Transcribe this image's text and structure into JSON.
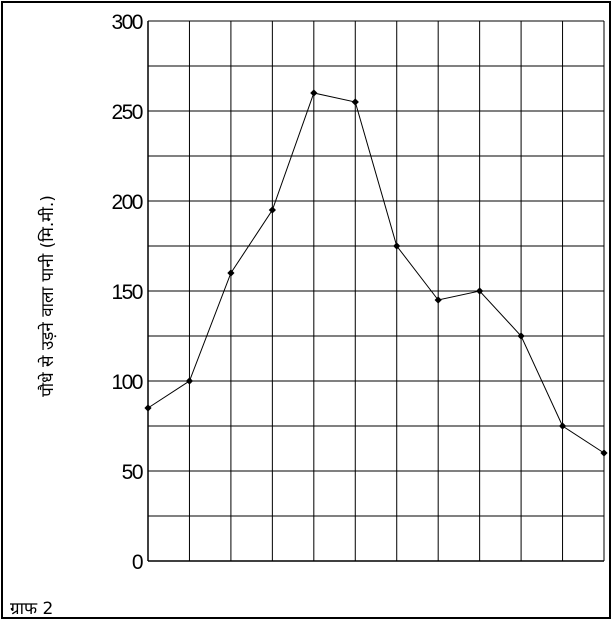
{
  "chart_data": {
    "type": "line",
    "title": "",
    "caption": "ग्राफ 2",
    "ylabel": "पौधे से उड़ने वाला पानी (मि.मी.)",
    "xlabel": "",
    "ylim": [
      0,
      300
    ],
    "yticks": [
      "0",
      "50",
      "100",
      "150",
      "200",
      "250",
      "300"
    ],
    "x": [
      0,
      1,
      2,
      3,
      4,
      5,
      6,
      7,
      8,
      9,
      10,
      11
    ],
    "xlim": [
      0,
      11
    ],
    "x_gridlines": 11,
    "y_gridstep": 25,
    "grid": true,
    "series": [
      {
        "values": [
          85,
          100,
          160,
          195,
          260,
          255,
          175,
          145,
          150,
          125,
          75,
          60
        ]
      }
    ]
  }
}
